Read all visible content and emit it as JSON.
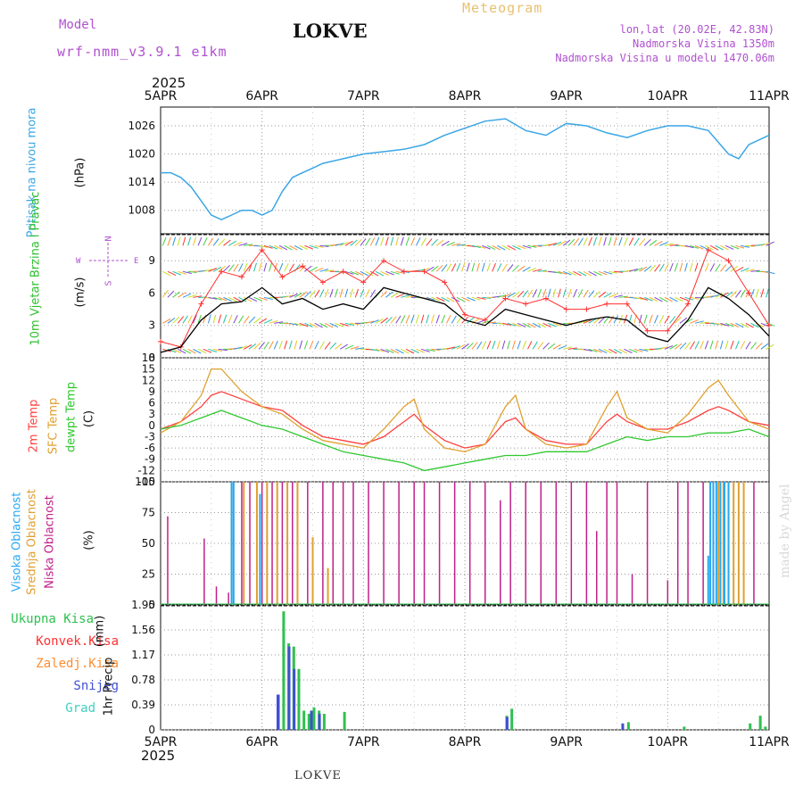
{
  "header": {
    "title": "LOKVE",
    "app_title": "Meteogram",
    "model_label": "Model",
    "model_name": "wrf-nmm_v3.9.1 e1km",
    "coords": "lon,lat (20.02E, 42.83N)",
    "altitude": "Nadmorska Visina 1350m",
    "altitude_model": "Nadmorska Visina u modelu 1470.06m",
    "year_top": "2025",
    "year_bottom": "2025",
    "footer": "LOKVE",
    "watermark": "made by Angel"
  },
  "colors": {
    "pressure": "#3aa6e6",
    "wind_speed": "#000000",
    "gust": "#ff3030",
    "t2m": "#ff4040",
    "tsfc": "#e0a030",
    "dewpt": "#30c830",
    "cloud_high": "#28a8f0",
    "cloud_mid": "#e0a030",
    "cloud_low": "#c0208a",
    "rain_total": "#30c050",
    "rain_conv": "#ff3030",
    "rain_frozen": "#ff8c30",
    "snow": "#4050d0",
    "hail": "#40d0c0",
    "grid": "#999999",
    "purple_text": "#b050d0"
  },
  "chart_data": [
    {
      "type": "line",
      "name": "pressure",
      "ylabel": "Pritisak na nivou mora",
      "unit": "(hPa)",
      "x_ticks": [
        "5APR",
        "6APR",
        "7APR",
        "8APR",
        "9APR",
        "10APR",
        "11APR"
      ],
      "y_ticks": [
        "1008",
        "1014",
        "1020",
        "1026"
      ],
      "ylim": [
        1003,
        1030
      ],
      "x_days": [
        0,
        0.1,
        0.2,
        0.3,
        0.4,
        0.5,
        0.6,
        0.7,
        0.8,
        0.9,
        1.0,
        1.1,
        1.2,
        1.3,
        1.4,
        1.5,
        1.6,
        1.8,
        2.0,
        2.2,
        2.4,
        2.6,
        2.8,
        3.0,
        3.2,
        3.4,
        3.6,
        3.8,
        4.0,
        4.2,
        4.4,
        4.6,
        4.8,
        5.0,
        5.2,
        5.4,
        5.6,
        5.7,
        5.8,
        6.0
      ],
      "values": [
        1016,
        1016,
        1015,
        1013,
        1010,
        1007,
        1006,
        1007,
        1008,
        1008,
        1007,
        1008,
        1012,
        1015,
        1016,
        1017,
        1018,
        1019,
        1020,
        1020.5,
        1021,
        1022,
        1024,
        1025.5,
        1027,
        1027.5,
        1025,
        1024,
        1026.5,
        1026,
        1024.5,
        1023.5,
        1025,
        1026,
        1026,
        1025,
        1020,
        1019,
        1022,
        1024
      ]
    },
    {
      "type": "line",
      "name": "wind",
      "ylabel": "10m Vjetar Brzina i Pravac",
      "unit": "(m/s)",
      "y_ticks": [
        "0",
        "3",
        "6",
        "9"
      ],
      "ylim": [
        0,
        11.5
      ],
      "compass": "N",
      "compass_w": "W",
      "compass_e": "E",
      "compass_s": "S",
      "series": [
        {
          "name": "speed",
          "x_days": [
            0,
            0.2,
            0.4,
            0.6,
            0.8,
            1.0,
            1.2,
            1.4,
            1.6,
            1.8,
            2.0,
            2.2,
            2.4,
            2.6,
            2.8,
            3.0,
            3.2,
            3.4,
            3.6,
            3.8,
            4.0,
            4.2,
            4.4,
            4.6,
            4.8,
            5.0,
            5.2,
            5.4,
            5.6,
            5.8,
            6.0
          ],
          "values": [
            0.5,
            1.0,
            3.5,
            5.0,
            5.2,
            6.5,
            5.0,
            5.5,
            4.5,
            5.0,
            4.5,
            6.5,
            6.0,
            5.5,
            5.0,
            3.5,
            3.0,
            4.5,
            4.0,
            3.5,
            3.0,
            3.5,
            3.8,
            3.5,
            2.0,
            1.5,
            3.5,
            6.5,
            5.5,
            4.0,
            2.0
          ]
        },
        {
          "name": "gust",
          "x_days": [
            0,
            0.2,
            0.4,
            0.6,
            0.8,
            1.0,
            1.2,
            1.4,
            1.6,
            1.8,
            2.0,
            2.2,
            2.4,
            2.6,
            2.8,
            3.0,
            3.2,
            3.4,
            3.6,
            3.8,
            4.0,
            4.2,
            4.4,
            4.6,
            4.8,
            5.0,
            5.2,
            5.4,
            5.6,
            5.8,
            6.0
          ],
          "values": [
            1.5,
            1.0,
            5.0,
            8.0,
            7.5,
            10.0,
            7.5,
            8.5,
            7.0,
            8.0,
            7.0,
            9.0,
            8.0,
            8.0,
            7.0,
            4.0,
            3.5,
            5.5,
            5.0,
            5.5,
            4.5,
            4.5,
            5.0,
            5.0,
            2.5,
            2.5,
            5.0,
            10.0,
            9.0,
            6.0,
            3.0
          ]
        }
      ]
    },
    {
      "type": "line",
      "name": "temperature",
      "ylabels": [
        "2m Temp",
        "SFC Temp",
        "dewpt Temp"
      ],
      "unit": "(C)",
      "y_ticks": [
        "-15",
        "-12",
        "-9",
        "-6",
        "-3",
        "0",
        "3",
        "6",
        "9",
        "12",
        "15",
        "18"
      ],
      "ylim": [
        -15,
        18
      ],
      "series": [
        {
          "name": "t2m",
          "x_days": [
            0,
            0.2,
            0.4,
            0.5,
            0.6,
            0.8,
            1.0,
            1.2,
            1.4,
            1.6,
            1.8,
            2.0,
            2.2,
            2.4,
            2.5,
            2.6,
            2.8,
            3.0,
            3.2,
            3.4,
            3.5,
            3.6,
            3.8,
            4.0,
            4.2,
            4.4,
            4.5,
            4.6,
            4.8,
            5.0,
            5.2,
            5.4,
            5.5,
            5.6,
            5.8,
            6.0
          ],
          "values": [
            -1,
            1,
            5,
            8,
            9,
            7,
            5,
            4,
            0,
            -3,
            -4,
            -5,
            -3,
            1,
            3,
            0,
            -4,
            -6,
            -5,
            1,
            2,
            -1,
            -4,
            -5,
            -5,
            1,
            3,
            1,
            -1,
            -1,
            1,
            4,
            5,
            4,
            1,
            0
          ]
        },
        {
          "name": "tsfc",
          "x_days": [
            0,
            0.2,
            0.4,
            0.5,
            0.6,
            0.8,
            1.0,
            1.2,
            1.4,
            1.6,
            1.8,
            2.0,
            2.2,
            2.4,
            2.5,
            2.6,
            2.8,
            3.0,
            3.2,
            3.4,
            3.5,
            3.6,
            3.8,
            4.0,
            4.2,
            4.4,
            4.5,
            4.6,
            4.8,
            5.0,
            5.2,
            5.4,
            5.5,
            5.6,
            5.8,
            6.0
          ],
          "values": [
            -2,
            1,
            8,
            15,
            15,
            9,
            5,
            3,
            -1,
            -4,
            -5,
            -6,
            -1,
            5,
            7,
            -1,
            -6,
            -7,
            -5,
            5,
            8,
            -1,
            -5,
            -6,
            -5,
            5,
            9,
            2,
            -1,
            -2,
            3,
            10,
            12,
            8,
            1,
            -1
          ]
        },
        {
          "name": "dewpt",
          "x_days": [
            0,
            0.2,
            0.4,
            0.6,
            0.8,
            1.0,
            1.2,
            1.4,
            1.6,
            1.8,
            2.0,
            2.2,
            2.4,
            2.6,
            2.8,
            3.0,
            3.2,
            3.4,
            3.6,
            3.8,
            4.0,
            4.2,
            4.4,
            4.6,
            4.8,
            5.0,
            5.2,
            5.4,
            5.6,
            5.8,
            6.0
          ],
          "values": [
            -1,
            0,
            2,
            4,
            2,
            0,
            -1,
            -3,
            -5,
            -7,
            -8,
            -9,
            -10,
            -12,
            -11,
            -10,
            -9,
            -8,
            -8,
            -7,
            -7,
            -7,
            -5,
            -3,
            -4,
            -3,
            -3,
            -2,
            -2,
            -1,
            -3
          ]
        }
      ]
    },
    {
      "type": "bar",
      "name": "clouds",
      "ylabels": [
        "Visoka Oblacnost",
        "Srednja Oblacnost",
        "Niska Oblacnost"
      ],
      "unit": "(%)",
      "y_ticks": [
        "0",
        "25",
        "50",
        "75",
        "100"
      ],
      "ylim": [
        0,
        100
      ],
      "series": [
        {
          "name": "low",
          "x_days": [
            0.07,
            0.43,
            0.55,
            0.67,
            0.8,
            0.88,
            1.0,
            1.1,
            1.2,
            1.3,
            1.45,
            1.6,
            1.7,
            1.8,
            1.9,
            2.05,
            2.2,
            2.35,
            2.5,
            2.6,
            2.75,
            2.9,
            3.05,
            3.2,
            3.35,
            3.45,
            3.6,
            3.75,
            3.9,
            4.05,
            4.2,
            4.3,
            4.4,
            4.5,
            4.65,
            4.8,
            5.0,
            5.1,
            5.2,
            5.35,
            5.55,
            5.65,
            5.85
          ],
          "values": [
            72,
            54,
            15,
            10,
            100,
            100,
            100,
            100,
            100,
            100,
            100,
            100,
            100,
            100,
            100,
            100,
            100,
            100,
            100,
            100,
            100,
            100,
            100,
            100,
            85,
            100,
            100,
            100,
            100,
            100,
            100,
            60,
            100,
            100,
            25,
            100,
            20,
            100,
            100,
            100,
            100,
            100,
            100
          ]
        },
        {
          "name": "mid",
          "x_days": [
            0.7,
            0.82,
            0.95,
            1.05,
            1.15,
            1.25,
            1.35,
            1.5,
            1.65,
            5.45,
            5.5,
            5.55,
            5.6,
            5.65,
            5.7,
            5.75
          ],
          "values": [
            100,
            100,
            100,
            100,
            100,
            100,
            100,
            55,
            30,
            100,
            100,
            100,
            100,
            100,
            100,
            100
          ]
        },
        {
          "name": "high",
          "x_days": [
            0.7,
            0.72,
            0.98,
            5.4,
            5.42,
            5.45,
            5.48,
            5.52,
            5.56,
            5.6
          ],
          "values": [
            100,
            100,
            90,
            40,
            100,
            100,
            100,
            100,
            100,
            100
          ]
        }
      ]
    },
    {
      "type": "bar",
      "name": "precip",
      "ylabel": "1hr Precip",
      "unit": "(mm)",
      "legend": [
        "Ukupna Kisa",
        "Konvek.Kisa",
        "Zaledj.Kisa",
        "Snijeg",
        "Grad"
      ],
      "y_ticks": [
        "0",
        "0.39",
        "0.78",
        "1.17",
        "1.56",
        "1.95"
      ],
      "ylim": [
        0,
        1.95
      ],
      "x_ticks": [
        "5APR",
        "6APR",
        "7APR",
        "8APR",
        "9APR",
        "10APR",
        "11APR"
      ],
      "series": [
        {
          "name": "total",
          "x_days": [
            1.15,
            1.2,
            1.25,
            1.3,
            1.35,
            1.4,
            1.45,
            1.5,
            1.55,
            1.6,
            1.8,
            3.4,
            3.45,
            4.6,
            5.15,
            5.8,
            5.9,
            5.95
          ],
          "values": [
            0.55,
            1.85,
            1.35,
            1.3,
            0.95,
            0.3,
            0.25,
            0.35,
            0.3,
            0.25,
            0.28,
            0.22,
            0.33,
            0.12,
            0.05,
            0.1,
            0.22,
            0.05
          ]
        },
        {
          "name": "snow",
          "x_days": [
            1.17,
            1.28,
            1.33,
            1.5,
            1.58,
            3.43,
            4.57
          ],
          "values": [
            0.55,
            1.3,
            0.95,
            0.3,
            0.25,
            0.2,
            0.1
          ]
        }
      ]
    }
  ]
}
